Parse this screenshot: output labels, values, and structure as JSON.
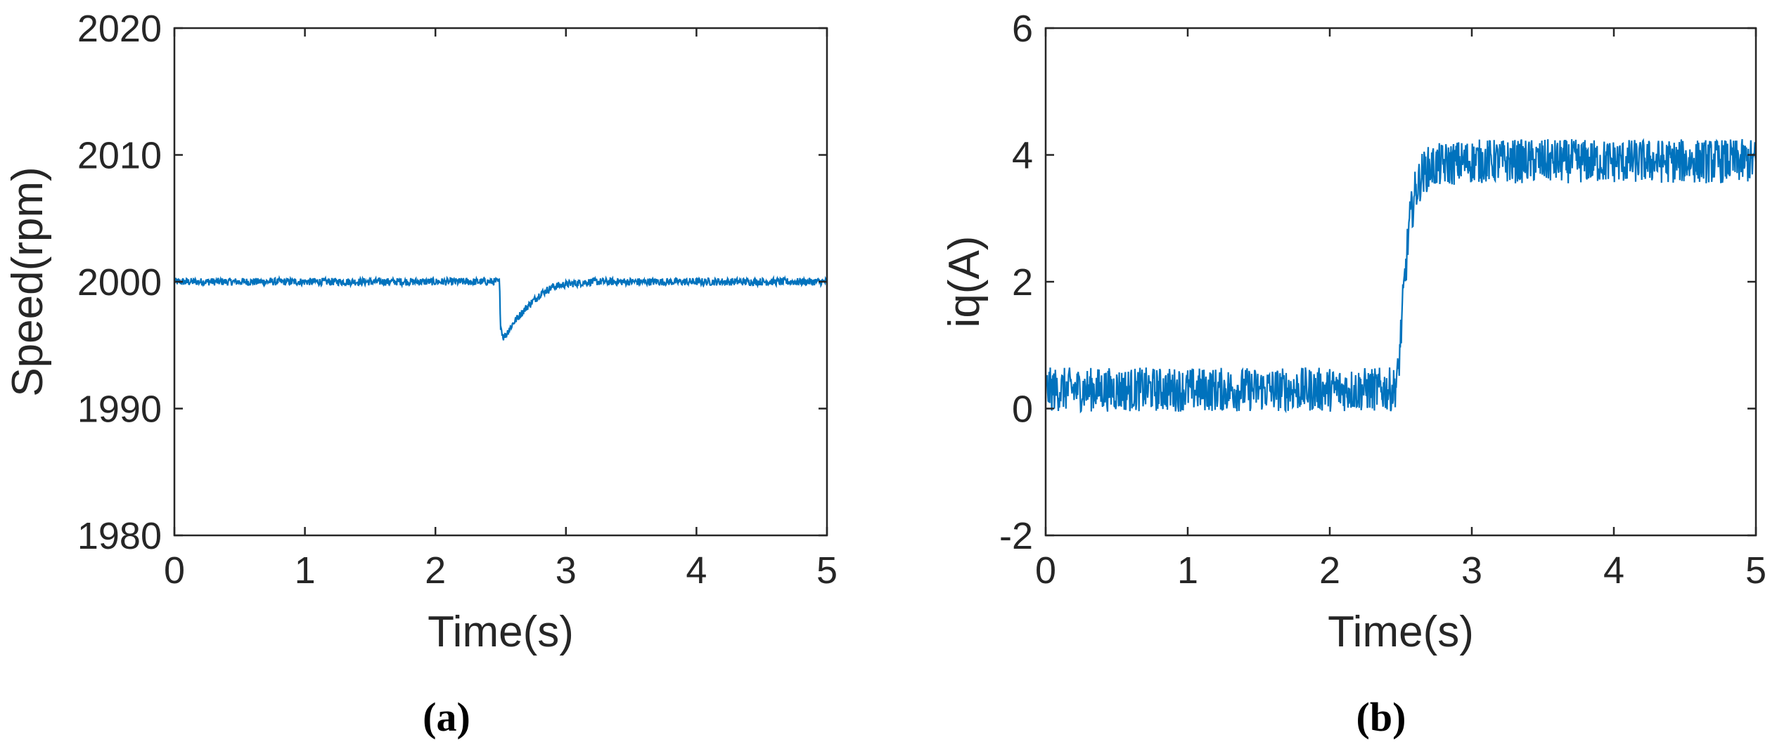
{
  "figure": {
    "panel_labels": [
      "(a)",
      "(b)"
    ]
  },
  "colors": {
    "series": "#0072BD",
    "axes": "#262626",
    "background": "#ffffff"
  },
  "chart_data": [
    {
      "type": "line",
      "panel_label": "(a)",
      "xlabel": "Time(s)",
      "ylabel": "Speed(rpm)",
      "xlim": [
        0,
        5
      ],
      "ylim": [
        1980,
        2020
      ],
      "xticks": [
        0,
        1,
        2,
        3,
        4,
        5
      ],
      "yticks": [
        1980,
        1990,
        2000,
        2010,
        2020
      ],
      "grid": false,
      "legend": "none",
      "series": [
        {
          "x": [
            0,
            0.5,
            1.0,
            1.5,
            2.0,
            2.49,
            2.5,
            2.52,
            2.55,
            2.6,
            2.7,
            2.8,
            2.9,
            3.0,
            3.2,
            3.5,
            4.0,
            4.5,
            5.0
          ],
          "y": [
            2000,
            2000,
            2000,
            2000,
            2000,
            2000,
            1996.5,
            1995.6,
            1996.0,
            1996.8,
            1998.0,
            1999.0,
            1999.6,
            1999.8,
            2000,
            2000,
            2000,
            2000,
            2000
          ],
          "noise_amplitude": 0.3
        }
      ]
    },
    {
      "type": "line",
      "panel_label": "(b)",
      "xlabel": "Time(s)",
      "ylabel": "iq(A)",
      "xlim": [
        0,
        5
      ],
      "ylim": [
        -2,
        6
      ],
      "xticks": [
        0,
        1,
        2,
        3,
        4,
        5
      ],
      "yticks": [
        -2,
        0,
        2,
        4,
        6
      ],
      "grid": false,
      "legend": "none",
      "series": [
        {
          "x": [
            0,
            0.5,
            1.0,
            1.5,
            2.0,
            2.45,
            2.48,
            2.52,
            2.56,
            2.6,
            2.65,
            2.7,
            2.8,
            3.0,
            3.5,
            4.0,
            4.5,
            5.0
          ],
          "y": [
            0.3,
            0.3,
            0.3,
            0.3,
            0.3,
            0.3,
            0.5,
            1.8,
            2.9,
            3.4,
            3.7,
            3.8,
            3.85,
            3.9,
            3.9,
            3.9,
            3.9,
            3.9
          ],
          "noise_amplitude": 0.35
        }
      ]
    }
  ]
}
